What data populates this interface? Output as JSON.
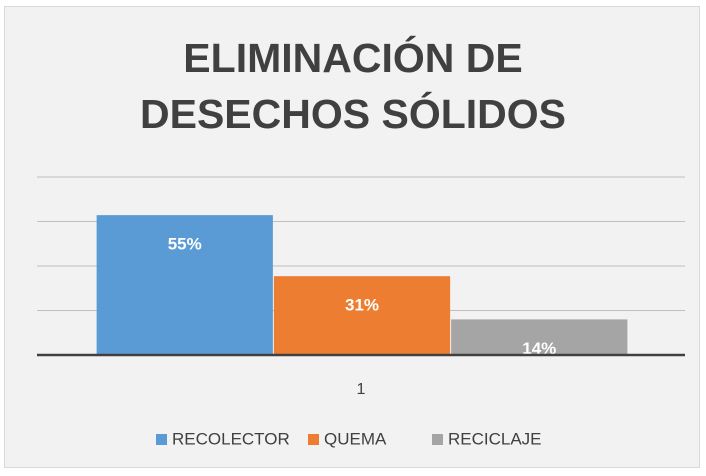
{
  "chart_data": {
    "type": "bar",
    "title": "ELIMINACIÓN DE DESECHOS SÓLIDOS",
    "categories": [
      "1"
    ],
    "series": [
      {
        "name": "RECOLECTOR",
        "color": "#5b9bd5",
        "values": [
          55
        ],
        "value_labels": [
          "55%"
        ]
      },
      {
        "name": "QUEMA",
        "color": "#ed7d31",
        "values": [
          31
        ],
        "value_labels": [
          "31%"
        ]
      },
      {
        "name": "RECICLAJE",
        "color": "#a5a5a5",
        "values": [
          14
        ],
        "value_labels": [
          "14%"
        ]
      }
    ],
    "ylim": [
      0,
      70
    ],
    "yticks": [
      0,
      17.5,
      35,
      52.5,
      70
    ],
    "grid": true,
    "legend": "bottom"
  }
}
